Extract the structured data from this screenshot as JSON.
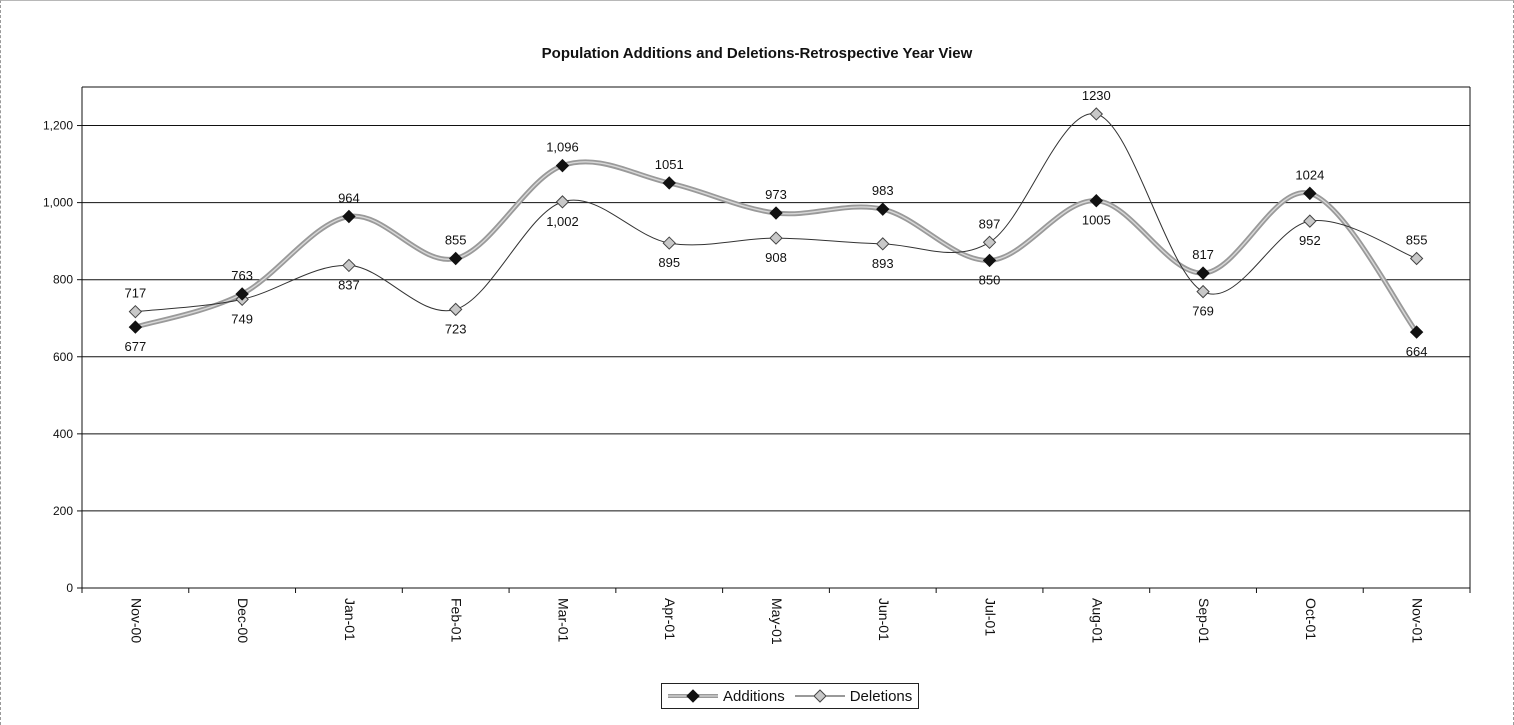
{
  "chart_data": {
    "type": "line",
    "title": "Population Additions and Deletions-Retrospective Year View",
    "categories": [
      "Nov-00",
      "Dec-00",
      "Jan-01",
      "Feb-01",
      "Mar-01",
      "Apr-01",
      "May-01",
      "Jun-01",
      "Jul-01",
      "Aug-01",
      "Sep-01",
      "Oct-01",
      "Nov-01"
    ],
    "ylim": [
      0,
      1300
    ],
    "yticks": [
      0,
      200,
      400,
      600,
      800,
      1000,
      1200
    ],
    "ytick_labels": [
      "0",
      "200",
      "400",
      "600",
      "800",
      "1,000",
      "1,200"
    ],
    "grid": true,
    "legend_position": "bottom-center",
    "series": [
      {
        "name": "Additions",
        "values": [
          677,
          763,
          964,
          855,
          1096,
          1051,
          973,
          983,
          850,
          1005,
          817,
          1024,
          664
        ],
        "labels": [
          "677",
          "763",
          "964",
          "855",
          "1,096",
          "1051",
          "973",
          "983",
          "850",
          "1005",
          "817",
          "1024",
          "664"
        ],
        "color": "#9a9a9a",
        "marker": "filled-diamond",
        "marker_color": "#111111"
      },
      {
        "name": "Deletions",
        "values": [
          717,
          749,
          837,
          723,
          1002,
          895,
          908,
          893,
          897,
          1230,
          769,
          952,
          855
        ],
        "labels": [
          "717",
          "749",
          "837",
          "723",
          "1,002",
          "895",
          "908",
          "893",
          "897",
          "1230",
          "769",
          "952",
          "855"
        ],
        "color": "#333333",
        "marker": "hollow-diamond",
        "marker_color": "#aaaaaa"
      }
    ]
  }
}
